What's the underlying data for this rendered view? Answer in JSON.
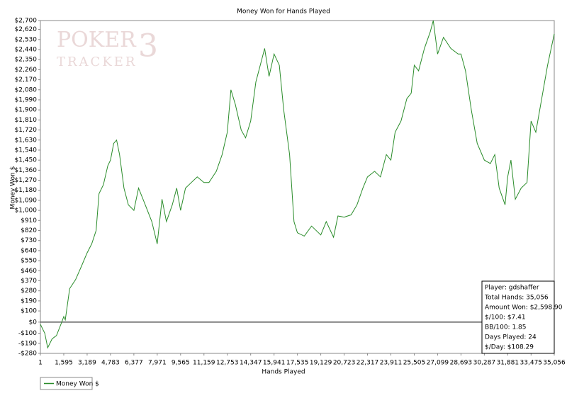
{
  "chart_data": {
    "type": "line",
    "title": "Money Won for Hands Played",
    "xlabel": "Hands Played",
    "ylabel": "Money Won $",
    "watermark": [
      "POKER",
      "TRACKER",
      "3"
    ],
    "xlim": [
      1,
      35056
    ],
    "ylim": [
      -280,
      2700
    ],
    "xticks": [
      1,
      {
        "value": 1595,
        "label": "1,595"
      },
      {
        "value": 3189,
        "label": "3,189"
      },
      {
        "value": 4783,
        "label": "4,783"
      },
      {
        "value": 6377,
        "label": "6,377"
      },
      {
        "value": 7971,
        "label": "7,971"
      },
      {
        "value": 9565,
        "label": "9,565"
      },
      {
        "value": 11159,
        "label": "11,159"
      },
      {
        "value": 12753,
        "label": "12,753"
      },
      {
        "value": 14347,
        "label": "14,347"
      },
      {
        "value": 15941,
        "label": "15,941"
      },
      {
        "value": 17535,
        "label": "17,535"
      },
      {
        "value": 19129,
        "label": "19,129"
      },
      {
        "value": 20723,
        "label": "20,723"
      },
      {
        "value": 22317,
        "label": "22,317"
      },
      {
        "value": 23911,
        "label": "23,911"
      },
      {
        "value": 25505,
        "label": "25,505"
      },
      {
        "value": 27099,
        "label": "27,099"
      },
      {
        "value": 28693,
        "label": "28,693"
      },
      {
        "value": 30287,
        "label": "30,287"
      },
      {
        "value": 31881,
        "label": "31,881"
      },
      {
        "value": 33475,
        "label": "33,475"
      },
      {
        "value": 35056,
        "label": "35,056"
      }
    ],
    "yticks": [
      {
        "value": -280,
        "label": "-$280"
      },
      {
        "value": -190,
        "label": "-$190"
      },
      {
        "value": -100,
        "label": "-$100"
      },
      {
        "value": 0,
        "label": "$0"
      },
      {
        "value": 100,
        "label": "$100"
      },
      {
        "value": 190,
        "label": "$190"
      },
      {
        "value": 280,
        "label": "$280"
      },
      {
        "value": 370,
        "label": "$370"
      },
      {
        "value": 460,
        "label": "$460"
      },
      {
        "value": 550,
        "label": "$550"
      },
      {
        "value": 640,
        "label": "$640"
      },
      {
        "value": 730,
        "label": "$730"
      },
      {
        "value": 820,
        "label": "$820"
      },
      {
        "value": 910,
        "label": "$910"
      },
      {
        "value": 1000,
        "label": "$1,000"
      },
      {
        "value": 1090,
        "label": "$1,090"
      },
      {
        "value": 1180,
        "label": "$1,180"
      },
      {
        "value": 1270,
        "label": "$1,270"
      },
      {
        "value": 1360,
        "label": "$1,360"
      },
      {
        "value": 1450,
        "label": "$1,450"
      },
      {
        "value": 1540,
        "label": "$1,540"
      },
      {
        "value": 1630,
        "label": "$1,630"
      },
      {
        "value": 1720,
        "label": "$1,720"
      },
      {
        "value": 1810,
        "label": "$1,810"
      },
      {
        "value": 1900,
        "label": "$1,900"
      },
      {
        "value": 1990,
        "label": "$1,990"
      },
      {
        "value": 2080,
        "label": "$2,080"
      },
      {
        "value": 2170,
        "label": "$2,170"
      },
      {
        "value": 2260,
        "label": "$2,260"
      },
      {
        "value": 2350,
        "label": "$2,350"
      },
      {
        "value": 2440,
        "label": "$2,440"
      },
      {
        "value": 2530,
        "label": "$2,530"
      },
      {
        "value": 2620,
        "label": "$2,620"
      },
      {
        "value": 2700,
        "label": "$2,700"
      }
    ],
    "grid": false,
    "x": [
      1,
      300,
      500,
      800,
      1100,
      1400,
      1595,
      1700,
      2000,
      2400,
      2800,
      3189,
      3500,
      3800,
      4000,
      4300,
      4600,
      4783,
      5000,
      5200,
      5400,
      5700,
      6000,
      6377,
      6700,
      7000,
      7300,
      7600,
      7971,
      8300,
      8600,
      9000,
      9300,
      9565,
      9900,
      10300,
      10700,
      11159,
      11500,
      12000,
      12400,
      12753,
      13000,
      13300,
      13700,
      14000,
      14347,
      14700,
      15000,
      15300,
      15600,
      15941,
      16300,
      16600,
      17000,
      17300,
      17535,
      18000,
      18500,
      19129,
      19500,
      20000,
      20300,
      20723,
      21200,
      21600,
      22000,
      22317,
      22800,
      23200,
      23600,
      23911,
      24200,
      24600,
      25000,
      25300,
      25505,
      25800,
      26200,
      26600,
      26800,
      27099,
      27500,
      28000,
      28500,
      28693,
      29000,
      29400,
      29800,
      30287,
      30700,
      31000,
      31300,
      31700,
      31881,
      32100,
      32400,
      32800,
      33200,
      33475,
      33800,
      34200,
      34600,
      35056
    ],
    "series": [
      {
        "name": "Money Won $",
        "color": "#2a8c2a",
        "values": [
          -20,
          -100,
          -230,
          -150,
          -120,
          -20,
          50,
          20,
          300,
          380,
          500,
          620,
          700,
          820,
          1150,
          1230,
          1400,
          1450,
          1600,
          1630,
          1500,
          1200,
          1050,
          1000,
          1200,
          1100,
          1000,
          900,
          700,
          1100,
          900,
          1050,
          1200,
          1000,
          1200,
          1250,
          1300,
          1250,
          1250,
          1350,
          1500,
          1700,
          2080,
          1950,
          1720,
          1650,
          1800,
          2150,
          2300,
          2450,
          2200,
          2400,
          2300,
          1900,
          1500,
          900,
          800,
          770,
          860,
          780,
          900,
          760,
          950,
          940,
          960,
          1050,
          1200,
          1300,
          1350,
          1300,
          1500,
          1450,
          1700,
          1800,
          2000,
          2050,
          2300,
          2250,
          2450,
          2600,
          2700,
          2400,
          2550,
          2450,
          2400,
          2400,
          2250,
          1900,
          1600,
          1450,
          1420,
          1500,
          1200,
          1050,
          1300,
          1450,
          1100,
          1200,
          1250,
          1800,
          1700,
          2000,
          2300,
          2580
        ]
      }
    ],
    "stats": [
      "Player: gdshaffer",
      "Total Hands: 35,056",
      "Amount Won: $2,598.90",
      "$/100: $7.41",
      "BB/100: 1.85",
      "Days Played: 24",
      "$/Day: $108.29"
    ]
  }
}
